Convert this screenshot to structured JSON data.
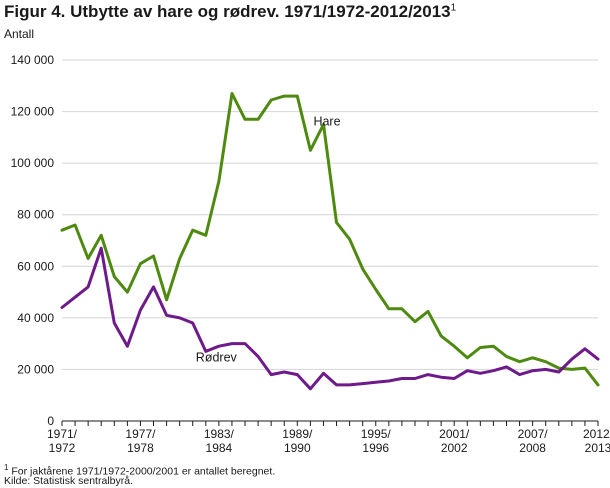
{
  "figure": {
    "title": "Figur 4. Utbytte av hare og rødrev. 1971/1972-2012/2013",
    "title_sup": "1",
    "footnote_mark": "1",
    "footnote": "For jaktårene 1971/1972-2000/2001 er antallet beregnet.",
    "source": "Kilde: Statistisk sentralbyrå."
  },
  "chart_data": {
    "type": "line",
    "ylabel": "Antall",
    "ylim": [
      0,
      140000
    ],
    "yticks": [
      0,
      20000,
      40000,
      60000,
      80000,
      100000,
      120000,
      140000
    ],
    "ytick_labels": [
      "0",
      "20 000",
      "40 000",
      "60 000",
      "80 000",
      "100 000",
      "120 000",
      "140 000"
    ],
    "grid": true,
    "categories": [
      "1971/1972",
      "1972/1973",
      "1973/1974",
      "1974/1975",
      "1975/1976",
      "1976/1977",
      "1977/1978",
      "1978/1979",
      "1979/1980",
      "1980/1981",
      "1981/1982",
      "1982/1983",
      "1983/1984",
      "1984/1985",
      "1985/1986",
      "1986/1987",
      "1987/1988",
      "1988/1989",
      "1989/1990",
      "1990/1991",
      "1991/1992",
      "1992/1993",
      "1993/1994",
      "1994/1995",
      "1995/1996",
      "1996/1997",
      "1997/1998",
      "1998/1999",
      "1999/2000",
      "2000/2001",
      "2001/2002",
      "2002/2003",
      "2003/2004",
      "2004/2005",
      "2005/2006",
      "2006/2007",
      "2007/2008",
      "2008/2009",
      "2009/2010",
      "2010/2011",
      "2011/2012",
      "2012/2013"
    ],
    "tick_categories": [
      {
        "index": 0,
        "line1": "1971/",
        "line2": "1972"
      },
      {
        "index": 6,
        "line1": "1977/",
        "line2": "1978"
      },
      {
        "index": 12,
        "line1": "1983/",
        "line2": "1984"
      },
      {
        "index": 18,
        "line1": "1989/",
        "line2": "1990"
      },
      {
        "index": 24,
        "line1": "1995/",
        "line2": "1996"
      },
      {
        "index": 30,
        "line1": "2001/",
        "line2": "2002"
      },
      {
        "index": 36,
        "line1": "2007/",
        "line2": "2008"
      },
      {
        "index": 41,
        "line1": "2012/",
        "line2": "2013"
      }
    ],
    "series": [
      {
        "name": "Hare",
        "color": "#4e8a10",
        "label_at_index": 20,
        "values": [
          74000,
          76000,
          63000,
          72000,
          56000,
          50000,
          61000,
          64000,
          47000,
          63000,
          74000,
          72000,
          93000,
          127000,
          117000,
          117000,
          124500,
          126000,
          126000,
          105000,
          115000,
          77000,
          70500,
          59000,
          51000,
          43500,
          43500,
          38500,
          42500,
          33000,
          29000,
          24500,
          28500,
          29000,
          25000,
          23000,
          24500,
          23000,
          20500,
          20000,
          20500,
          14000
        ]
      },
      {
        "name": "Rødrev",
        "color": "#6e1a8a",
        "label_at_index": 11,
        "values": [
          44000,
          48000,
          52000,
          67000,
          38000,
          29000,
          43000,
          52000,
          41000,
          40000,
          38000,
          27000,
          29000,
          30000,
          30000,
          25000,
          18000,
          19000,
          18000,
          12500,
          18500,
          14000,
          14000,
          14500,
          15000,
          15500,
          16500,
          16500,
          18000,
          17000,
          16500,
          19500,
          18500,
          19500,
          21000,
          18000,
          19500,
          20000,
          19000,
          24000,
          28000,
          24000
        ]
      }
    ]
  }
}
